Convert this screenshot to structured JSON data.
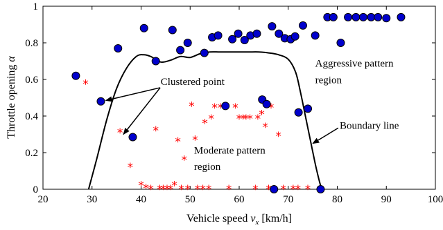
{
  "chart_data": {
    "type": "scatter",
    "title": "",
    "xlabel": "Vehicle speed",
    "xlabel_symbol": "v",
    "xlabel_subscript": "x",
    "xlabel_unit": "[km/h]",
    "ylabel": "Throttle opening",
    "ylabel_symbol": "α",
    "xlim": [
      20,
      100
    ],
    "ylim": [
      0,
      1
    ],
    "xticks": [
      20,
      30,
      40,
      50,
      60,
      70,
      80,
      90,
      100
    ],
    "yticks": [
      0,
      0.2,
      0.4,
      0.6,
      0.8,
      1
    ],
    "ytick_labels": [
      "0",
      "0.2",
      "0.4",
      "0.6",
      "0.8",
      "1"
    ],
    "grid": false,
    "series": [
      {
        "marker": "circle",
        "color": "#0000cc",
        "points": [
          [
            26.7,
            0.62
          ],
          [
            31.8,
            0.48
          ],
          [
            35.3,
            0.77
          ],
          [
            38.3,
            0.285
          ],
          [
            40.6,
            0.88
          ],
          [
            43.0,
            0.7
          ],
          [
            46.4,
            0.87
          ],
          [
            48.0,
            0.76
          ],
          [
            49.5,
            0.8
          ],
          [
            52.9,
            0.745
          ],
          [
            54.5,
            0.83
          ],
          [
            55.7,
            0.84
          ],
          [
            57.2,
            0.455
          ],
          [
            58.6,
            0.82
          ],
          [
            59.8,
            0.85
          ],
          [
            61.1,
            0.815
          ],
          [
            62.3,
            0.84
          ],
          [
            63.6,
            0.85
          ],
          [
            64.7,
            0.49
          ],
          [
            65.6,
            0.465
          ],
          [
            66.7,
            0.89
          ],
          [
            67.1,
            0.0
          ],
          [
            68.1,
            0.85
          ],
          [
            69.3,
            0.825
          ],
          [
            70.5,
            0.82
          ],
          [
            71.4,
            0.835
          ],
          [
            72.1,
            0.42
          ],
          [
            73.0,
            0.895
          ],
          [
            74.0,
            0.44
          ],
          [
            75.5,
            0.84
          ],
          [
            76.6,
            0.0
          ],
          [
            78.0,
            0.94
          ],
          [
            79.2,
            0.94
          ],
          [
            80.7,
            0.8
          ],
          [
            82.2,
            0.94
          ],
          [
            83.8,
            0.94
          ],
          [
            85.3,
            0.94
          ],
          [
            86.9,
            0.94
          ],
          [
            88.3,
            0.94
          ],
          [
            90.0,
            0.935
          ],
          [
            93.0,
            0.94
          ]
        ]
      },
      {
        "marker": "star",
        "color": "#ff0000",
        "points": [
          [
            28.7,
            0.575
          ],
          [
            35.7,
            0.31
          ],
          [
            37.8,
            0.12
          ],
          [
            40.0,
            0.02
          ],
          [
            41.0,
            0.005
          ],
          [
            42.0,
            0.0
          ],
          [
            43.0,
            0.32
          ],
          [
            43.8,
            0.0
          ],
          [
            44.5,
            0.0
          ],
          [
            45.3,
            0.0
          ],
          [
            46.0,
            0.0
          ],
          [
            46.8,
            0.02
          ],
          [
            47.5,
            0.26
          ],
          [
            48.2,
            0.0
          ],
          [
            48.8,
            0.16
          ],
          [
            49.5,
            0.0
          ],
          [
            50.3,
            0.455
          ],
          [
            51.0,
            0.27
          ],
          [
            51.5,
            0.0
          ],
          [
            52.6,
            0.0
          ],
          [
            53.0,
            0.36
          ],
          [
            53.8,
            0.0
          ],
          [
            54.3,
            0.385
          ],
          [
            55.0,
            0.445
          ],
          [
            56.2,
            0.445
          ],
          [
            57.0,
            0.445
          ],
          [
            57.9,
            0.0
          ],
          [
            59.2,
            0.445
          ],
          [
            60.0,
            0.385
          ],
          [
            60.8,
            0.385
          ],
          [
            61.4,
            0.385
          ],
          [
            62.2,
            0.385
          ],
          [
            63.3,
            0.0
          ],
          [
            63.8,
            0.385
          ],
          [
            64.6,
            0.41
          ],
          [
            65.3,
            0.34
          ],
          [
            66.0,
            0.0
          ],
          [
            66.5,
            0.445
          ],
          [
            68.0,
            0.29
          ],
          [
            69.0,
            0.0
          ],
          [
            71.0,
            0.0
          ],
          [
            72.0,
            0.0
          ],
          [
            74.0,
            0.0
          ]
        ]
      }
    ],
    "boundary_line": {
      "color": "#000000",
      "points": [
        [
          29.3,
          0.0
        ],
        [
          31.0,
          0.17
        ],
        [
          33.0,
          0.38
        ],
        [
          35.0,
          0.55
        ],
        [
          37.0,
          0.66
        ],
        [
          39.0,
          0.725
        ],
        [
          40.5,
          0.735
        ],
        [
          42.0,
          0.725
        ],
        [
          44.0,
          0.695
        ],
        [
          46.0,
          0.705
        ],
        [
          48.0,
          0.725
        ],
        [
          50.0,
          0.72
        ],
        [
          52.0,
          0.74
        ],
        [
          54.0,
          0.75
        ],
        [
          56.0,
          0.75
        ],
        [
          58.0,
          0.75
        ],
        [
          60.0,
          0.75
        ],
        [
          62.0,
          0.75
        ],
        [
          64.0,
          0.75
        ],
        [
          66.0,
          0.745
        ],
        [
          68.0,
          0.735
        ],
        [
          70.0,
          0.71
        ],
        [
          71.5,
          0.64
        ],
        [
          72.5,
          0.53
        ],
        [
          73.5,
          0.4
        ],
        [
          74.5,
          0.27
        ],
        [
          75.5,
          0.14
        ],
        [
          76.2,
          0.06
        ],
        [
          76.8,
          0.0
        ]
      ]
    },
    "annotations": [
      {
        "text": "Clustered point",
        "anchor": [
          44.0,
          0.57
        ],
        "anchor_pos": "start"
      },
      {
        "text": "Aggressive pattern",
        "anchor": [
          75.5,
          0.67
        ],
        "anchor_pos": "start"
      },
      {
        "text": "region",
        "anchor": [
          75.5,
          0.58
        ],
        "anchor_pos": "start"
      },
      {
        "text": "Boundary line",
        "anchor": [
          80.5,
          0.33
        ],
        "anchor_pos": "start"
      },
      {
        "text": "Moderate pattern",
        "anchor": [
          50.8,
          0.195
        ],
        "anchor_pos": "start"
      },
      {
        "text": "region",
        "anchor": [
          50.8,
          0.105
        ],
        "anchor_pos": "start"
      }
    ],
    "arrows": [
      {
        "from": [
          43.9,
          0.555
        ],
        "to": [
          32.8,
          0.485
        ]
      },
      {
        "from": [
          43.9,
          0.555
        ],
        "to": [
          36.4,
          0.3
        ]
      },
      {
        "from": [
          80.2,
          0.335
        ],
        "to": [
          75.0,
          0.25
        ]
      }
    ]
  }
}
